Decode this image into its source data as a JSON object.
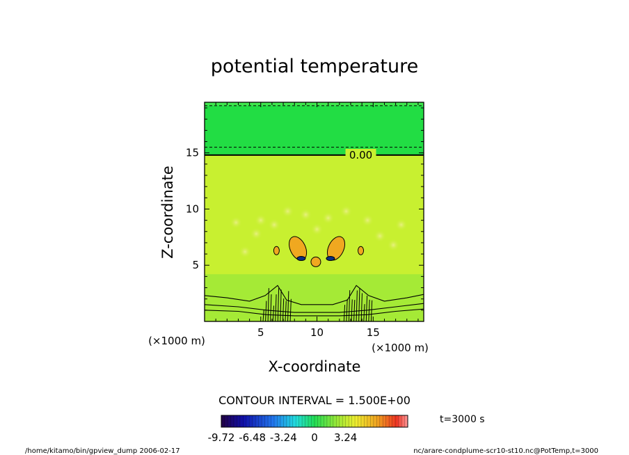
{
  "chart_data": {
    "type": "heatmap",
    "title": "potential temperature",
    "xlabel": "X-coordinate",
    "ylabel": "Z-coordinate",
    "x_unit": "(×1000 m)",
    "y_unit": "(×1000 m)",
    "xlim": [
      0,
      19.5
    ],
    "ylim": [
      0,
      19.5
    ],
    "x_ticks": [
      5,
      10,
      15
    ],
    "y_ticks": [
      5,
      10,
      15
    ],
    "contour_label": "0.00",
    "contour_label_at": [
      13.9,
      14.8
    ],
    "zero_contour_z": 14.8,
    "dashed_contours_z": [
      15.5,
      19.2
    ],
    "contour_interval_text": "CONTOUR INTERVAL = 1.500E+00",
    "time_text": "t=3000 s",
    "colorbar": {
      "min": -9.72,
      "max": 9.72,
      "tick_values": [
        -9.72,
        -6.48,
        -3.24,
        0,
        3.24
      ],
      "tick_labels": [
        "-9.72",
        "-6.48",
        "-3.24",
        "0",
        "3.24"
      ]
    },
    "colors": {
      "upper_band": "#22dd44",
      "upper_band_top": "#55ee55",
      "main": "#c8f030",
      "near_surface": "#99e838",
      "warm": "#f0a820",
      "cold": "#0a3080"
    }
  },
  "footer": {
    "left": "/home/kitamo/bin/gpview_dump  2006-02-17",
    "right": "nc/arare-condplume-scr10-st10.nc@PotTemp,t=3000"
  }
}
